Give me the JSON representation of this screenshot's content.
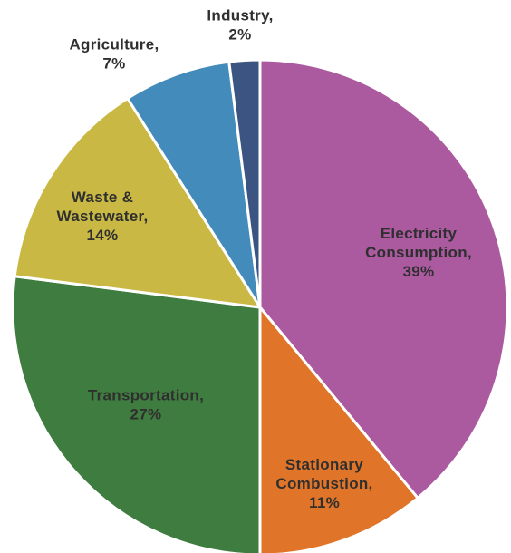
{
  "chart_data": {
    "type": "pie",
    "title": "",
    "slices": [
      {
        "key": "electricity",
        "label_lines": [
          "Electricity",
          "Consumption,",
          "39%"
        ],
        "value": 39,
        "color": "#ab5a9f"
      },
      {
        "key": "stationary",
        "label_lines": [
          "Stationary",
          "Combustion,",
          "11%"
        ],
        "value": 11,
        "color": "#e07428"
      },
      {
        "key": "transportation",
        "label_lines": [
          "Transportation,",
          "27%"
        ],
        "value": 27,
        "color": "#3f7c3f"
      },
      {
        "key": "waste",
        "label_lines": [
          "Waste &",
          "Wastewater,",
          "14%"
        ],
        "value": 14,
        "color": "#c9b843"
      },
      {
        "key": "agriculture",
        "label_lines": [
          "Agriculture,",
          "7%"
        ],
        "value": 7,
        "color": "#438bbb"
      },
      {
        "key": "industry",
        "label_lines": [
          "Industry,",
          "2%"
        ],
        "value": 2,
        "color": "#3c5482"
      }
    ],
    "start": "12 o'clock",
    "direction": "clockwise",
    "label_color": "#2f2f2f",
    "separator_color": "#ffffff"
  }
}
